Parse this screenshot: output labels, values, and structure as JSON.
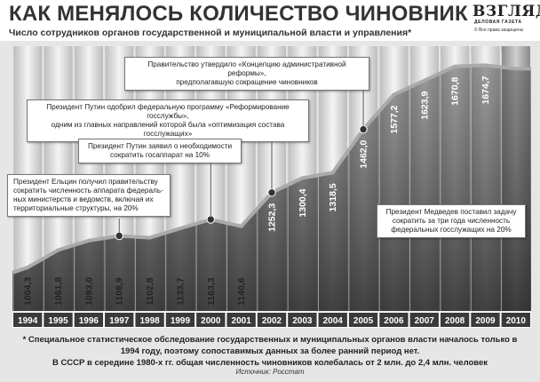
{
  "title": "КАК МЕНЯЛОСЬ КОЛИЧЕСТВО ЧИНОВНИКОВ",
  "subtitle": "Число сотрудников органов государственной и муниципальной власти и управления*",
  "logo": {
    "main": "ВЗГЛЯД",
    "sub": "ДЕЛОВАЯ ГАЗЕТА",
    "rights": "© Все права защищены"
  },
  "chart_data": {
    "type": "bar",
    "categories": [
      "1994",
      "1995",
      "1996",
      "1997",
      "1998",
      "1999",
      "2000",
      "2001",
      "2002",
      "2003",
      "2004",
      "2005",
      "2006",
      "2007",
      "2008",
      "2009",
      "2010"
    ],
    "values": [
      1004.3,
      1061.8,
      1093.0,
      1108.9,
      1102.8,
      1133.7,
      1163.3,
      1140.6,
      1252.3,
      1300.4,
      1318.5,
      1462.0,
      1577.2,
      1623.9,
      1670.8,
      1674.7,
      null
    ],
    "value_labels": [
      "1004,3",
      "1061,8",
      "1093,0",
      "1108,9",
      "1102,8",
      "1133,7",
      "1163,3",
      "1140,6",
      "1252,3",
      "1300,4",
      "1318,5",
      "1462,0",
      "1577,2",
      "1623,9",
      "1670,8",
      "1674,7",
      ""
    ],
    "ylim": [
      860,
      1720
    ],
    "grid": false,
    "trend_line": true,
    "marked_points": [
      "1997",
      "2000",
      "2002",
      "2005"
    ],
    "annotations": [
      {
        "year": "1997",
        "text": "Президент Ельцин получил правительству сократить численность аппарата федеральных министерств и ведомств, включая их территориальные структуры, на 20%"
      },
      {
        "year": "2000",
        "text": "Президент Путин заявил о необходимости сократить госаппарат на 10%"
      },
      {
        "year": "2002",
        "text": "Президент Путин одобрил федеральную программу «Реформирование госслужбы», одним из главных направлений которой была «оптимизация состава госслужащих»"
      },
      {
        "year": "2005",
        "text": "Правительство утвердило «Концепцию административной реформы», предполагавшую сокращение чиновников"
      },
      {
        "year": "2010",
        "text": "Президент Медведев поставил задачу сократить за три года численность федеральных госслужащих на 20%"
      }
    ]
  },
  "callouts": [
    {
      "lines": [
        "Правительство утвердило «Концепцию административной реформы»,",
        "предполагавшую сокращение чиновников"
      ]
    },
    {
      "lines": [
        "Президент Путин одобрил федеральную программу «Реформирование госслужбы»,",
        "одним из главных направлений которой была «оптимизация состава госслужащих»"
      ]
    },
    {
      "lines": [
        "Президент Путин заявил о необходимости",
        "сократить госаппарат на 10%"
      ]
    },
    {
      "lines": [
        "Президент Ельцин получил правительству",
        "сократить численность аппарата федераль-",
        "ных министерств и ведомств, включая их",
        "территориальные структуры, на 20%"
      ]
    },
    {
      "lines": [
        "Президент Медведев поставил задачу",
        "сократить за три года численность",
        "федеральных госслужащих на 20%"
      ]
    }
  ],
  "footnote": {
    "line1": "* Специальное статистическое обследование государственных и муниципальных органов власти началось только в",
    "line2": "1994 году, поэтому сопоставимых данных за более ранний период нет.",
    "line3": "В СССР в середине 1980-х гг. общая численность чиновников колебалась от 2 млн. до 2,4 млн. человек",
    "source": "Источник: Росстат"
  }
}
